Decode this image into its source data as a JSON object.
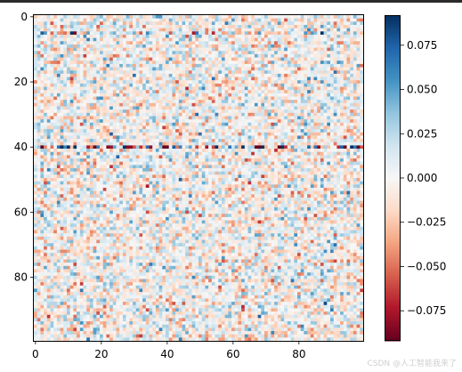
{
  "chart_data": {
    "type": "heatmap",
    "title": "",
    "xlabel": "",
    "ylabel": "",
    "shape": [
      100,
      100
    ],
    "x_ticks": [
      0,
      20,
      40,
      60,
      80
    ],
    "y_ticks": [
      0,
      20,
      40,
      60,
      80
    ],
    "x_tick_labels": [
      "0",
      "20",
      "40",
      "60",
      "80"
    ],
    "y_tick_labels": [
      "0",
      "20",
      "40",
      "60",
      "80"
    ],
    "xlim": [
      -0.5,
      99.5
    ],
    "ylim": [
      99.5,
      -0.5
    ],
    "colormap": "RdBu",
    "vmin": -0.092,
    "vmax": 0.092,
    "colorbar_ticks": [
      0.075,
      0.05,
      0.025,
      0.0,
      -0.025,
      -0.05,
      -0.075
    ],
    "colorbar_tick_labels": [
      "0.075",
      "0.050",
      "0.025",
      "0.000",
      "−0.025",
      "−0.050",
      "−0.075"
    ],
    "grid": false,
    "value_distribution": {
      "mean": 0.0,
      "std": 0.022
    },
    "highlighted_rows": [
      {
        "row": 5,
        "std": 0.035
      },
      {
        "row": 40,
        "std": 0.06
      }
    ]
  },
  "watermark": "CSDN @人工智能我来了",
  "colors": {
    "cmap_low": "#67001f",
    "cmap_mid": "#f7f7f7",
    "cmap_high": "#053061"
  }
}
